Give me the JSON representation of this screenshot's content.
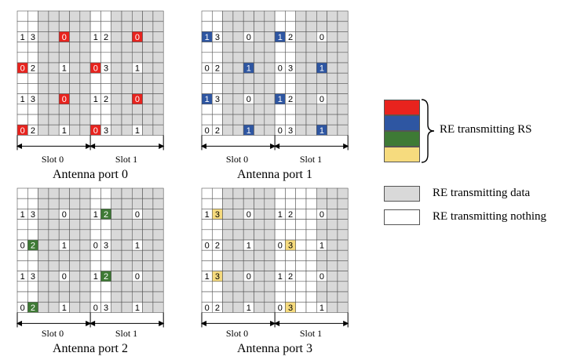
{
  "colors": {
    "data": "#d9d9d9",
    "nothing": "#ffffff",
    "rs_port0": "#e8231e",
    "rs_port1": "#2e56a2",
    "rs_port2": "#3e7a35",
    "rs_port3": "#f6db7e",
    "grid_line": "#555555"
  },
  "grid": {
    "columns": 14,
    "rows": 12,
    "rs_rows": [
      2,
      5,
      8,
      11
    ]
  },
  "panels": [
    {
      "title": "Antenna port 0",
      "slots": [
        "Slot 0",
        "Slot 1"
      ],
      "rs_color": "rs_port0",
      "white_columns": [],
      "rows": [
        [
          [
            "1",
            ""
          ],
          [
            "3",
            ""
          ],
          [
            "",
            ""
          ],
          [
            "",
            ""
          ],
          [
            "0",
            "rs"
          ],
          [
            "",
            ""
          ],
          [
            "",
            ""
          ],
          [
            "1",
            ""
          ],
          [
            "2",
            ""
          ],
          [
            "",
            ""
          ],
          [
            "",
            ""
          ],
          [
            "0",
            "rs"
          ],
          [
            "",
            ""
          ],
          [
            "",
            ""
          ]
        ],
        [
          [
            "0",
            "rs"
          ],
          [
            "2",
            ""
          ],
          [
            "",
            ""
          ],
          [
            "",
            ""
          ],
          [
            "1",
            ""
          ],
          [
            "",
            ""
          ],
          [
            "",
            ""
          ],
          [
            "0",
            "rs"
          ],
          [
            "3",
            ""
          ],
          [
            "",
            ""
          ],
          [
            "",
            ""
          ],
          [
            "1",
            ""
          ],
          [
            "",
            ""
          ],
          [
            "",
            ""
          ]
        ],
        [
          [
            "1",
            ""
          ],
          [
            "3",
            ""
          ],
          [
            "",
            ""
          ],
          [
            "",
            ""
          ],
          [
            "0",
            "rs"
          ],
          [
            "",
            ""
          ],
          [
            "",
            ""
          ],
          [
            "1",
            ""
          ],
          [
            "2",
            ""
          ],
          [
            "",
            ""
          ],
          [
            "",
            ""
          ],
          [
            "0",
            "rs"
          ],
          [
            "",
            ""
          ],
          [
            "",
            ""
          ]
        ],
        [
          [
            "0",
            "rs"
          ],
          [
            "2",
            ""
          ],
          [
            "",
            ""
          ],
          [
            "",
            ""
          ],
          [
            "1",
            ""
          ],
          [
            "",
            ""
          ],
          [
            "",
            ""
          ],
          [
            "0",
            "rs"
          ],
          [
            "3",
            ""
          ],
          [
            "",
            ""
          ],
          [
            "",
            ""
          ],
          [
            "1",
            ""
          ],
          [
            "",
            ""
          ],
          [
            "",
            ""
          ]
        ]
      ]
    },
    {
      "title": "Antenna port 1",
      "slots": [
        "Slot 0",
        "Slot 1"
      ],
      "rs_color": "rs_port1",
      "white_columns": [],
      "rows": [
        [
          [
            "1",
            "rs"
          ],
          [
            "3",
            ""
          ],
          [
            "",
            ""
          ],
          [
            "",
            ""
          ],
          [
            "0",
            ""
          ],
          [
            "",
            ""
          ],
          [
            "",
            ""
          ],
          [
            "1",
            "rs"
          ],
          [
            "2",
            ""
          ],
          [
            "",
            ""
          ],
          [
            "",
            ""
          ],
          [
            "0",
            ""
          ],
          [
            "",
            ""
          ],
          [
            "",
            ""
          ]
        ],
        [
          [
            "0",
            ""
          ],
          [
            "2",
            ""
          ],
          [
            "",
            ""
          ],
          [
            "",
            ""
          ],
          [
            "1",
            "rs"
          ],
          [
            "",
            ""
          ],
          [
            "",
            ""
          ],
          [
            "0",
            ""
          ],
          [
            "3",
            ""
          ],
          [
            "",
            ""
          ],
          [
            "",
            ""
          ],
          [
            "1",
            "rs"
          ],
          [
            "",
            ""
          ],
          [
            "",
            ""
          ]
        ],
        [
          [
            "1",
            "rs"
          ],
          [
            "3",
            ""
          ],
          [
            "",
            ""
          ],
          [
            "",
            ""
          ],
          [
            "0",
            ""
          ],
          [
            "",
            ""
          ],
          [
            "",
            ""
          ],
          [
            "1",
            "rs"
          ],
          [
            "2",
            ""
          ],
          [
            "",
            ""
          ],
          [
            "",
            ""
          ],
          [
            "0",
            ""
          ],
          [
            "",
            ""
          ],
          [
            "",
            ""
          ]
        ],
        [
          [
            "0",
            ""
          ],
          [
            "2",
            ""
          ],
          [
            "",
            ""
          ],
          [
            "",
            ""
          ],
          [
            "1",
            "rs"
          ],
          [
            "",
            ""
          ],
          [
            "",
            ""
          ],
          [
            "0",
            ""
          ],
          [
            "3",
            ""
          ],
          [
            "",
            ""
          ],
          [
            "",
            ""
          ],
          [
            "1",
            "rs"
          ],
          [
            "",
            ""
          ],
          [
            "",
            ""
          ]
        ]
      ]
    },
    {
      "title": "Antenna port 2",
      "slots": [
        "Slot 0",
        "Slot 1"
      ],
      "rs_color": "rs_port2",
      "white_columns": [],
      "rows": [
        [
          [
            "1",
            ""
          ],
          [
            "3",
            ""
          ],
          [
            "",
            ""
          ],
          [
            "",
            ""
          ],
          [
            "0",
            ""
          ],
          [
            "",
            ""
          ],
          [
            "",
            ""
          ],
          [
            "1",
            ""
          ],
          [
            "2",
            "rs"
          ],
          [
            "",
            ""
          ],
          [
            "",
            ""
          ],
          [
            "0",
            ""
          ],
          [
            "",
            ""
          ],
          [
            "",
            ""
          ]
        ],
        [
          [
            "0",
            ""
          ],
          [
            "2",
            "rs"
          ],
          [
            "",
            ""
          ],
          [
            "",
            ""
          ],
          [
            "1",
            ""
          ],
          [
            "",
            ""
          ],
          [
            "",
            ""
          ],
          [
            "0",
            ""
          ],
          [
            "3",
            ""
          ],
          [
            "",
            ""
          ],
          [
            "",
            ""
          ],
          [
            "1",
            ""
          ],
          [
            "",
            ""
          ],
          [
            "",
            ""
          ]
        ],
        [
          [
            "1",
            ""
          ],
          [
            "3",
            ""
          ],
          [
            "",
            ""
          ],
          [
            "",
            ""
          ],
          [
            "0",
            ""
          ],
          [
            "",
            ""
          ],
          [
            "",
            ""
          ],
          [
            "1",
            ""
          ],
          [
            "2",
            "rs"
          ],
          [
            "",
            ""
          ],
          [
            "",
            ""
          ],
          [
            "0",
            ""
          ],
          [
            "",
            ""
          ],
          [
            "",
            ""
          ]
        ],
        [
          [
            "0",
            ""
          ],
          [
            "2",
            "rs"
          ],
          [
            "",
            ""
          ],
          [
            "",
            ""
          ],
          [
            "1",
            ""
          ],
          [
            "",
            ""
          ],
          [
            "",
            ""
          ],
          [
            "0",
            ""
          ],
          [
            "3",
            ""
          ],
          [
            "",
            ""
          ],
          [
            "",
            ""
          ],
          [
            "1",
            ""
          ],
          [
            "",
            ""
          ],
          [
            "",
            ""
          ]
        ]
      ]
    },
    {
      "title": "Antenna port 3",
      "slots": [
        "Slot 0",
        "Slot 1"
      ],
      "rs_color": "rs_port3",
      "white_columns": [
        7,
        8,
        9,
        10
      ],
      "rows": [
        [
          [
            "1",
            ""
          ],
          [
            "3",
            "rs"
          ],
          [
            "",
            ""
          ],
          [
            "",
            ""
          ],
          [
            "0",
            ""
          ],
          [
            "",
            ""
          ],
          [
            "",
            ""
          ],
          [
            "1",
            ""
          ],
          [
            "2",
            ""
          ],
          [
            "",
            ""
          ],
          [
            "",
            ""
          ],
          [
            "0",
            ""
          ],
          [
            "",
            ""
          ],
          [
            "",
            ""
          ]
        ],
        [
          [
            "0",
            ""
          ],
          [
            "2",
            ""
          ],
          [
            "",
            ""
          ],
          [
            "",
            ""
          ],
          [
            "1",
            ""
          ],
          [
            "",
            ""
          ],
          [
            "",
            ""
          ],
          [
            "0",
            ""
          ],
          [
            "3",
            "rs"
          ],
          [
            "",
            ""
          ],
          [
            "",
            ""
          ],
          [
            "1",
            ""
          ],
          [
            "",
            ""
          ],
          [
            "",
            ""
          ]
        ],
        [
          [
            "1",
            ""
          ],
          [
            "3",
            "rs"
          ],
          [
            "",
            ""
          ],
          [
            "",
            ""
          ],
          [
            "0",
            ""
          ],
          [
            "",
            ""
          ],
          [
            "",
            ""
          ],
          [
            "1",
            ""
          ],
          [
            "2",
            ""
          ],
          [
            "",
            ""
          ],
          [
            "",
            ""
          ],
          [
            "0",
            ""
          ],
          [
            "",
            ""
          ],
          [
            "",
            ""
          ]
        ],
        [
          [
            "0",
            ""
          ],
          [
            "2",
            ""
          ],
          [
            "",
            ""
          ],
          [
            "",
            ""
          ],
          [
            "1",
            ""
          ],
          [
            "",
            ""
          ],
          [
            "",
            ""
          ],
          [
            "0",
            ""
          ],
          [
            "3",
            "rs"
          ],
          [
            "",
            ""
          ],
          [
            "",
            ""
          ],
          [
            "1",
            ""
          ],
          [
            "",
            ""
          ],
          [
            "",
            ""
          ]
        ]
      ]
    }
  ],
  "legend": {
    "rs_label": "RE transmitting RS",
    "data_label": "RE transmitting data",
    "nothing_label": "RE transmitting nothing"
  }
}
